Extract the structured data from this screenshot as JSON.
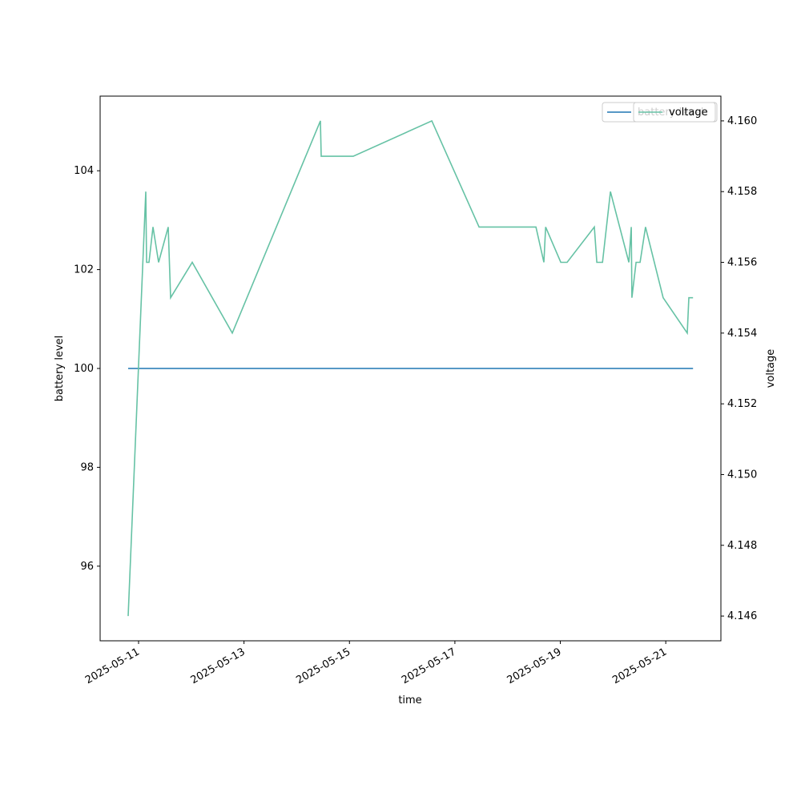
{
  "chart_data": {
    "type": "line",
    "x_label": "time",
    "y_label": "battery level",
    "y2_label": "voltage",
    "x": [
      "2025-05-10T19:15",
      "2025-05-11T03:17",
      "2025-05-11T03:39",
      "2025-05-11T04:44",
      "2025-05-11T06:34",
      "2025-05-11T09:07",
      "2025-05-11T13:30",
      "2025-05-11T14:35",
      "2025-05-12T00:26",
      "2025-05-12T18:40",
      "2025-05-14T10:47",
      "2025-05-14T11:09",
      "2025-05-15T01:44",
      "2025-05-16T13:29",
      "2025-05-17T11:00",
      "2025-05-18T12:54",
      "2025-05-18T16:30",
      "2025-05-18T17:18",
      "2025-05-19T00:12",
      "2025-05-19T03:06",
      "2025-05-19T15:30",
      "2025-05-19T16:36",
      "2025-05-19T19:12",
      "2025-05-19T22:48",
      "2025-05-20T07:12",
      "2025-05-20T08:18",
      "2025-05-20T08:36",
      "2025-05-20T10:30",
      "2025-05-20T12:18",
      "2025-05-20T14:48",
      "2025-05-20T22:48",
      "2025-05-21T09:48",
      "2025-05-21T10:30",
      "2025-05-21T12:24"
    ],
    "series": [
      {
        "name": "battery level",
        "color": "#1f77b4",
        "values": [
          100,
          100,
          100,
          100,
          100,
          100,
          100,
          100,
          100,
          100,
          100,
          100,
          100,
          100,
          100,
          100,
          100,
          100,
          100,
          100,
          100,
          100,
          100,
          100,
          100,
          100,
          100,
          100,
          100,
          100,
          100,
          100,
          100,
          100
        ]
      },
      {
        "name": "voltage",
        "color": "#66c2a5",
        "axis": "y2",
        "values": [
          4.146,
          4.158,
          4.156,
          4.156,
          4.157,
          4.156,
          4.157,
          4.155,
          4.156,
          4.154,
          4.16,
          4.159,
          4.159,
          4.16,
          4.157,
          4.157,
          4.156,
          4.157,
          4.156,
          4.156,
          4.157,
          4.156,
          4.156,
          4.158,
          4.156,
          4.157,
          4.155,
          4.156,
          4.156,
          4.157,
          4.155,
          4.154,
          4.155,
          4.155
        ]
      }
    ],
    "xlim": [
      "2025-05-10T06:30",
      "2025-05-22T01:06"
    ],
    "xticks": [
      "2025-05-11",
      "2025-05-13",
      "2025-05-15",
      "2025-05-17",
      "2025-05-19",
      "2025-05-21"
    ],
    "ylim": [
      94.49,
      105.51
    ],
    "yticks": [
      96,
      98,
      100,
      102,
      104
    ],
    "y2lim": [
      4.1453,
      4.1607
    ],
    "y2ticks": [
      4.146,
      4.148,
      {
        "value": 4.15,
        "label": "4.150"
      },
      4.152,
      4.154,
      4.156,
      4.158,
      {
        "value": 4.16,
        "label": "4.160"
      }
    ],
    "legend": "upper right"
  }
}
